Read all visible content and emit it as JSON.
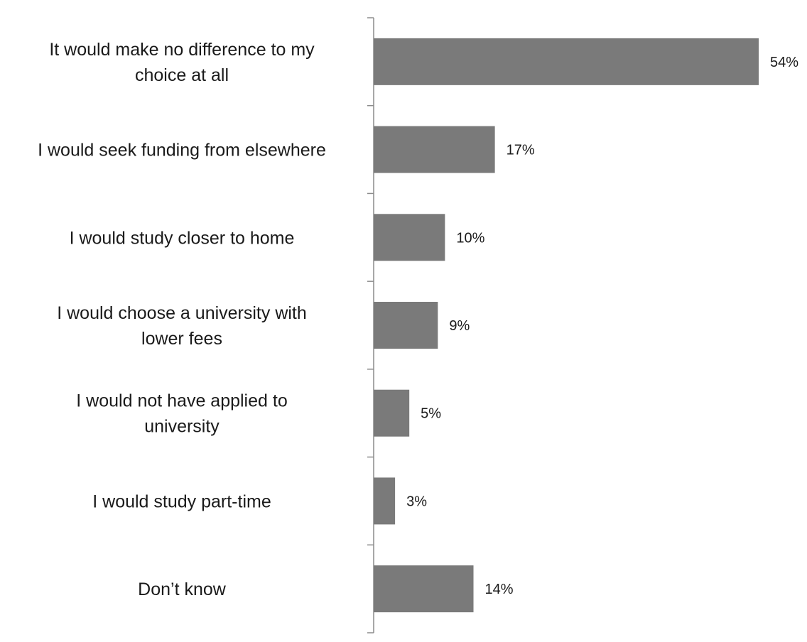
{
  "chart_data": {
    "type": "bar",
    "orientation": "horizontal",
    "categories": [
      "It would make no difference to my choice at all",
      "I would seek funding from elsewhere",
      "I would study closer to home",
      "I would choose a university with lower fees",
      "I would not have applied to university",
      "I would study part-time",
      "Don’t know"
    ],
    "category_lines": [
      [
        "It would make no difference to my",
        "choice at all"
      ],
      [
        "I would seek funding from elsewhere"
      ],
      [
        "I would study closer to home"
      ],
      [
        "I would choose a university with",
        "lower fees"
      ],
      [
        "I would not have applied to",
        "university"
      ],
      [
        "I would study part-time"
      ],
      [
        "Don’t know"
      ]
    ],
    "values": [
      54,
      17,
      10,
      9,
      5,
      3,
      14
    ],
    "value_labels": [
      "54%",
      "17%",
      "10%",
      "9%",
      "5%",
      "3%",
      "14%"
    ],
    "xlim": [
      0,
      54
    ],
    "bar_color": "#7a7a7a",
    "axis_color": "#8c8c8c",
    "grid": false,
    "legend": "none"
  }
}
